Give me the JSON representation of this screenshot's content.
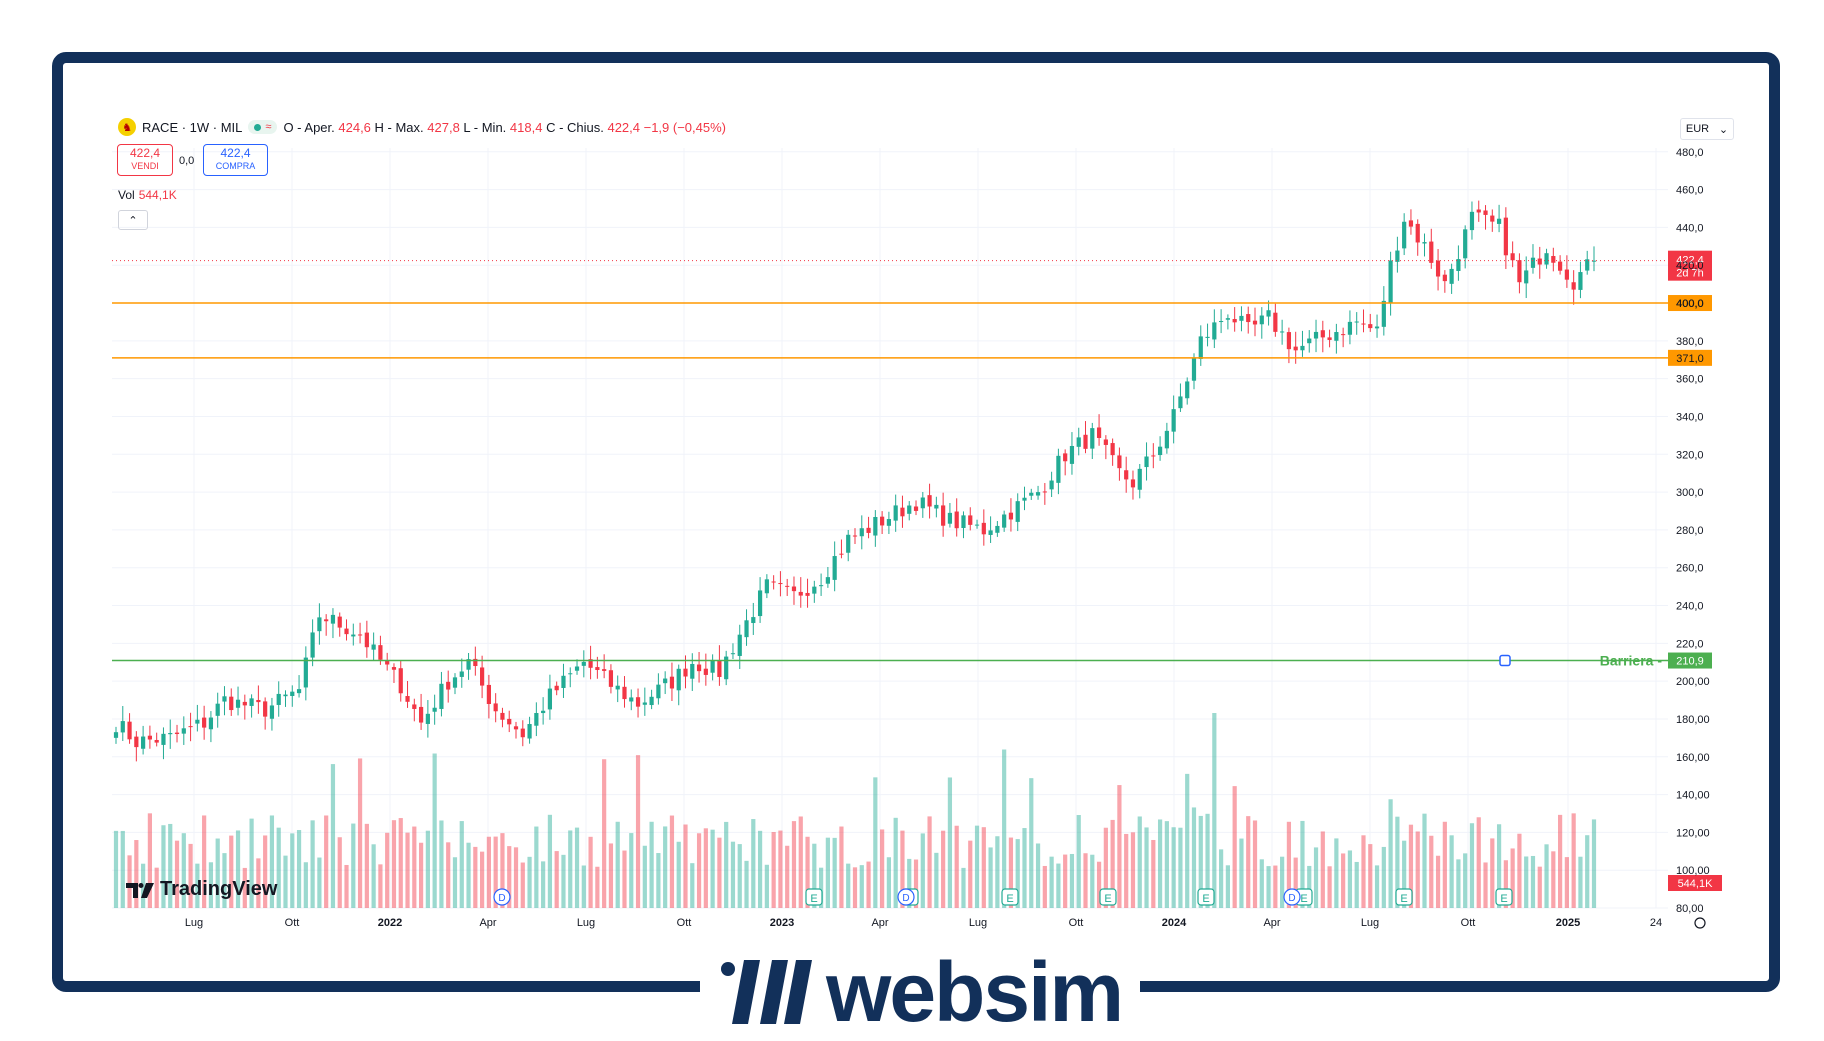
{
  "header": {
    "symbol": "RACE · 1W · MIL",
    "symbol_icon": "ferrari-horse-icon",
    "ohlc": [
      {
        "k": "O - Aper.",
        "v": "424,6"
      },
      {
        "k": "H - Max.",
        "v": "427,8"
      },
      {
        "k": "L - Min.",
        "v": "418,4"
      },
      {
        "k": "C - Chius.",
        "v": "422,4 −1,9 (−0,45%)"
      }
    ]
  },
  "trade": {
    "sell_price": "422,4",
    "sell_label": "VENDI",
    "spread": "0,0",
    "buy_price": "422,4",
    "buy_label": "COMPRA"
  },
  "volume": {
    "label": "Vol",
    "value": "544,1K"
  },
  "currency": "EUR",
  "watermark": "TradingView",
  "brand": "websim",
  "colors": {
    "up": "#22ab94",
    "down": "#f23645",
    "support": "#ff9800",
    "barrier": "#4caf50",
    "brand": "#12305a"
  },
  "chart_data": {
    "type": "candlestick",
    "x_tick_labels": [
      "Lug",
      "Ott",
      "2022",
      "Apr",
      "Lug",
      "Ott",
      "2023",
      "Apr",
      "Lug",
      "Ott",
      "2024",
      "Apr",
      "Lug",
      "Ott",
      "2025",
      "24"
    ],
    "y_tick_labels": [
      "80,00",
      "100,00",
      "120,00",
      "140,00",
      "160,00",
      "180,00",
      "200,00",
      "220,0",
      "240,0",
      "260,0",
      "280,0",
      "300,0",
      "320,0",
      "340,0",
      "360,0",
      "380,0",
      "400,0",
      "420,0",
      "440,0",
      "460,0",
      "480,0"
    ],
    "ylim": [
      80,
      482
    ],
    "price_anchors": [
      [
        0,
        178
      ],
      [
        3,
        168
      ],
      [
        8,
        170
      ],
      [
        13,
        178
      ],
      [
        16,
        190
      ],
      [
        22,
        185
      ],
      [
        27,
        195
      ],
      [
        30,
        235
      ],
      [
        36,
        225
      ],
      [
        38,
        215
      ],
      [
        42,
        198
      ],
      [
        45,
        178
      ],
      [
        49,
        200
      ],
      [
        52,
        210
      ],
      [
        56,
        185
      ],
      [
        60,
        172
      ],
      [
        64,
        192
      ],
      [
        69,
        210
      ],
      [
        73,
        198
      ],
      [
        77,
        188
      ],
      [
        82,
        200
      ],
      [
        85,
        210
      ],
      [
        89,
        205
      ],
      [
        92,
        225
      ],
      [
        96,
        250
      ],
      [
        100,
        245
      ],
      [
        104,
        255
      ],
      [
        108,
        275
      ],
      [
        113,
        285
      ],
      [
        118,
        295
      ],
      [
        123,
        285
      ],
      [
        128,
        280
      ],
      [
        132,
        290
      ],
      [
        136,
        300
      ],
      [
        140,
        320
      ],
      [
        144,
        330
      ],
      [
        148,
        310
      ],
      [
        150,
        305
      ],
      [
        153,
        320
      ],
      [
        156,
        340
      ],
      [
        160,
        380
      ],
      [
        164,
        395
      ],
      [
        167,
        385
      ],
      [
        170,
        392
      ],
      [
        174,
        375
      ],
      [
        178,
        382
      ],
      [
        183,
        390
      ],
      [
        186,
        385
      ],
      [
        188,
        420
      ],
      [
        190,
        445
      ],
      [
        193,
        430
      ],
      [
        196,
        410
      ],
      [
        200,
        445
      ],
      [
        204,
        440
      ],
      [
        207,
        410
      ],
      [
        211,
        430
      ],
      [
        215,
        412
      ],
      [
        218,
        422
      ]
    ],
    "last_close": 422.4,
    "last_change": "−1,9 (−0,45%)",
    "current_price_label": "422,4",
    "countdown": "2d 7h",
    "volume_label": "544,1K",
    "levels": [
      {
        "value": 400,
        "label": "400,0",
        "color": "#ff9800"
      },
      {
        "value": 371,
        "label": "371,0",
        "color": "#ff9800"
      },
      {
        "value": 210.9,
        "label": "210,9",
        "name": "Barriera",
        "color": "#4caf50"
      }
    ],
    "event_markers": [
      "E",
      "D"
    ]
  }
}
